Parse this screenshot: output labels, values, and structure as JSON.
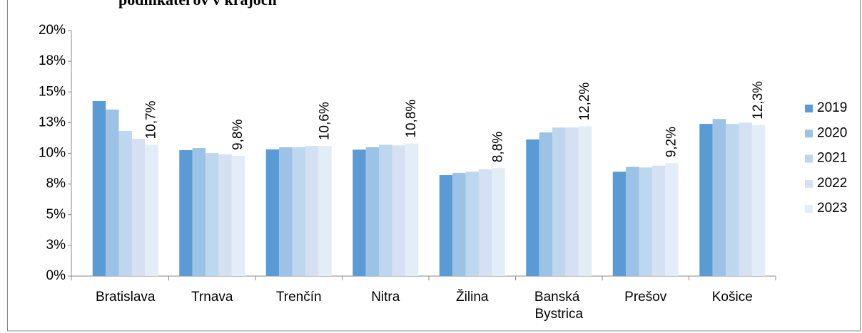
{
  "chart_data": {
    "type": "bar",
    "title": "podnikateľov v krajoch",
    "categories": [
      "Bratislava",
      "Trnava",
      "Trenčín",
      "Nitra",
      "Žilina",
      "Banská Bystrica",
      "Prešov",
      "Košice"
    ],
    "series": [
      {
        "name": "2019",
        "color": "#5b9bd5",
        "values": [
          14.26,
          10.26,
          10.32,
          10.3,
          8.23,
          11.13,
          8.5,
          12.4
        ]
      },
      {
        "name": "2020",
        "color": "#9cc2e5",
        "values": [
          13.57,
          10.43,
          10.49,
          10.5,
          8.4,
          11.7,
          8.9,
          12.8
        ]
      },
      {
        "name": "2021",
        "color": "#bdd7ee",
        "values": [
          11.83,
          10.03,
          10.5,
          10.7,
          8.5,
          12.1,
          8.85,
          12.4
        ]
      },
      {
        "name": "2022",
        "color": "#d6e0f3",
        "values": [
          11.19,
          9.91,
          10.6,
          10.65,
          8.7,
          12.1,
          9.0,
          12.5
        ]
      },
      {
        "name": "2023",
        "color": "#e2edf8",
        "values": [
          10.7,
          9.8,
          10.6,
          10.8,
          8.8,
          12.2,
          9.2,
          12.3
        ],
        "value_labels": [
          "10,7%",
          "9,8%",
          "10,6%",
          "10,8%",
          "8,8%",
          "12,2%",
          "9,2%",
          "12,3%"
        ]
      }
    ],
    "ylim": [
      0,
      20
    ],
    "yticks": [
      {
        "value": 0,
        "label": "0%"
      },
      {
        "value": 2.5,
        "label": "3%"
      },
      {
        "value": 5,
        "label": "5%"
      },
      {
        "value": 7.5,
        "label": "8%"
      },
      {
        "value": 10,
        "label": "10%"
      },
      {
        "value": 12.5,
        "label": "13%"
      },
      {
        "value": 15,
        "label": "15%"
      },
      {
        "value": 17.5,
        "label": "18%"
      },
      {
        "value": 20,
        "label": "20%"
      }
    ],
    "legend": "right"
  }
}
